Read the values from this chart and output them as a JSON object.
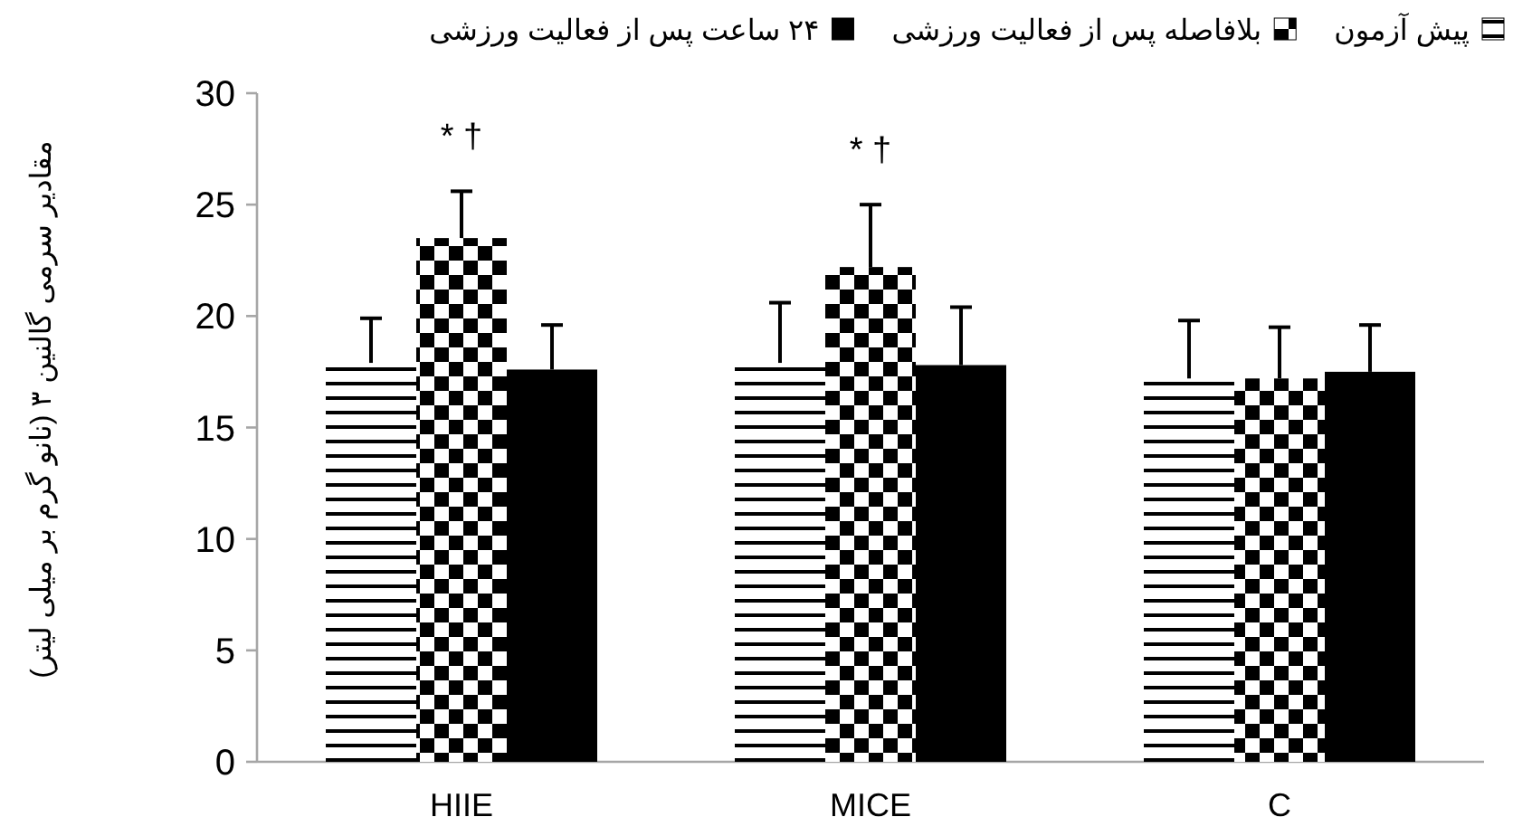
{
  "chart_data": {
    "type": "bar",
    "ylabel": "مقادیر سرمی گالنین ۳ (نانو گرم بر میلی لیتر)",
    "categories": [
      "HIIE",
      "MICE",
      "C"
    ],
    "series": [
      {
        "name": "پیش آزمون",
        "color": "#000000",
        "values": [
          17.9,
          17.9,
          17.2
        ],
        "errors": [
          [
            17.9,
            19.9
          ],
          [
            17.9,
            20.6
          ],
          [
            17.2,
            19.8
          ]
        ]
      },
      {
        "name": "بلافاصله پس از فعالیت ورزشی",
        "color": "#000000",
        "values": [
          23.5,
          22.2,
          17.2
        ],
        "errors": [
          [
            23.5,
            25.6
          ],
          [
            22.2,
            25.0
          ],
          [
            17.2,
            19.5
          ]
        ]
      },
      {
        "name": "۲۴ ساعت پس از فعالیت ورزشی",
        "color": "#000000",
        "values": [
          17.6,
          17.8,
          17.5
        ],
        "errors": [
          [
            17.6,
            19.6
          ],
          [
            17.8,
            20.4
          ],
          [
            17.5,
            19.6
          ]
        ]
      }
    ],
    "annotations": [
      "*  †",
      "*  †"
    ],
    "ylim": [
      0,
      30
    ],
    "yticks": [
      0,
      5,
      10,
      15,
      20,
      25,
      30
    ],
    "legend": "top"
  }
}
